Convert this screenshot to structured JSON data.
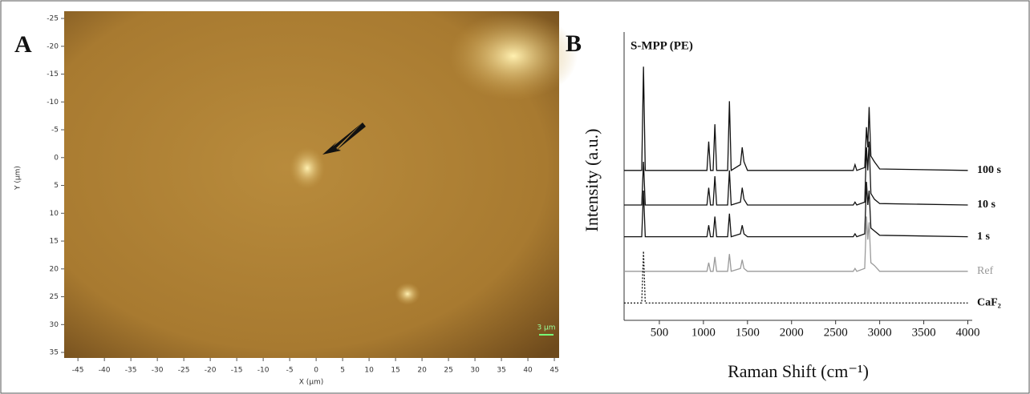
{
  "panel_a": {
    "label": "A",
    "x_label": "X (µm)",
    "y_label": "Y (µm)",
    "scale_bar": "3 µm",
    "xlim": [
      -47.6,
      45.9
    ],
    "ylim": [
      -26.3,
      36
    ],
    "xticks": [
      -45,
      -40,
      -35,
      -30,
      -25,
      -20,
      -15,
      -10,
      -5,
      0,
      5,
      10,
      15,
      20,
      25,
      30,
      35,
      40,
      45
    ],
    "yticks": [
      -25,
      -20,
      -15,
      -10,
      -5,
      0,
      5,
      10,
      15,
      20,
      25,
      30,
      35
    ]
  },
  "chart_data": {
    "type": "line",
    "label": "B",
    "title": "S-MPP (PE)",
    "x_label": "Raman Shift (cm⁻¹)",
    "y_label": "Intensity (a.u.)",
    "xlim": [
      100,
      4050
    ],
    "ylim": [
      0,
      100
    ],
    "xticks": [
      500,
      1000,
      1500,
      2000,
      2500,
      3000,
      3500,
      4000
    ],
    "x": [
      100,
      300,
      320,
      340,
      1040,
      1060,
      1080,
      1110,
      1130,
      1150,
      1275,
      1295,
      1315,
      1420,
      1440,
      1460,
      1500,
      2700,
      2720,
      2740,
      2830,
      2850,
      2865,
      2880,
      2900,
      2940,
      3000,
      4000
    ],
    "series": [
      {
        "name": "100 s",
        "color": "#111111",
        "values": [
          52,
          52,
          88,
          52,
          52,
          62,
          52,
          52,
          68,
          52,
          52,
          76,
          52,
          54,
          60,
          55,
          52,
          52,
          54,
          52,
          53,
          67,
          60,
          74,
          57,
          55,
          52.5,
          52
        ]
      },
      {
        "name": "10 s",
        "color": "#111111",
        "values": [
          40,
          40,
          55,
          40,
          40,
          46,
          40,
          40,
          50,
          40,
          40,
          52,
          40,
          41,
          46,
          42,
          40,
          40,
          41,
          40,
          41,
          60,
          52,
          62,
          44,
          42,
          40.5,
          40
        ]
      },
      {
        "name": "1 s",
        "color": "#111111",
        "values": [
          29,
          29,
          45,
          29,
          29,
          33,
          29,
          29,
          36,
          29,
          29,
          37,
          29,
          30,
          33,
          30,
          29,
          29,
          30,
          29,
          30,
          48,
          40,
          45,
          32,
          31,
          29.5,
          29
        ]
      },
      {
        "name": "Ref",
        "color": "#9a9a9a",
        "values": [
          17,
          17,
          17,
          17,
          17,
          20,
          17,
          17,
          22,
          17,
          17,
          23,
          17,
          18,
          21,
          18,
          17,
          17,
          18,
          17,
          18,
          36,
          28,
          34,
          20,
          19,
          17,
          17
        ]
      },
      {
        "name": "CaF₂",
        "color": "#111111",
        "dashed": true,
        "values": [
          6,
          6,
          24,
          6,
          6,
          6,
          6,
          6,
          6,
          6,
          6,
          6,
          6,
          6,
          6,
          6,
          6,
          6,
          6,
          6,
          6,
          6,
          6,
          6,
          6,
          6,
          6,
          6
        ]
      }
    ]
  }
}
